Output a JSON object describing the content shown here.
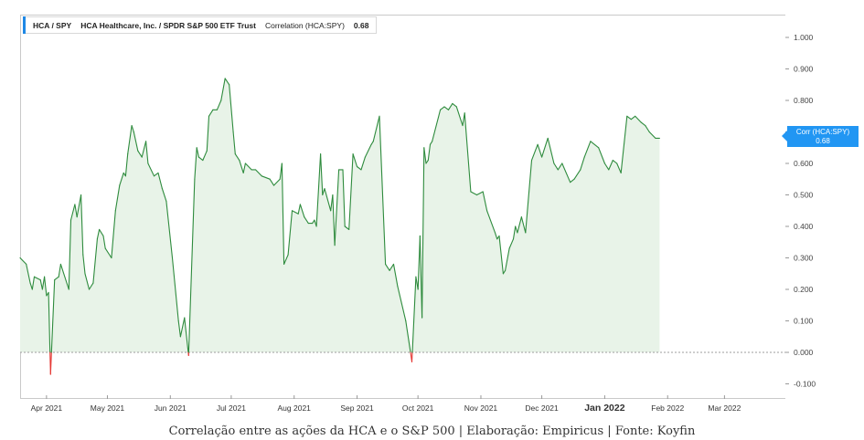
{
  "legend": {
    "ticker": "HCA / SPY",
    "description": "HCA Healthcare, Inc. / SPDR S&P 500 ETF Trust",
    "label": "Correlation (HCA:SPY)",
    "value": "0.68"
  },
  "badge": {
    "label": "Corr (HCA:SPY)",
    "value": "0.68"
  },
  "caption": "Correlação entre as ações da HCA e o S&P 500 | Elaboração: Empiricus | Fonte: Koyfin",
  "colors": {
    "line_positive": "#2e8b3d",
    "line_negative": "#e53935",
    "area_fill": "#e8f3e8",
    "accent": "#2196f3",
    "zero_line": "#9e9e9e"
  },
  "chart_data": {
    "type": "area",
    "series": [
      {
        "name": "Corr (HCA:SPY)"
      }
    ],
    "ylim": [
      -0.15,
      1.03
    ],
    "yticks": [
      1.0,
      0.9,
      0.8,
      0.7,
      0.6,
      0.5,
      0.4,
      0.3,
      0.2,
      0.1,
      0.0,
      -0.1
    ],
    "ytick_labels": [
      "1.000",
      "0.900",
      "0.800",
      "0.700",
      "0.600",
      "0.500",
      "0.400",
      "0.300",
      "0.200",
      "0.100",
      "0.000",
      "-0.100"
    ],
    "xlim": [
      "2021-03-19",
      "2022-03-31"
    ],
    "xticks": [
      {
        "date": "2021-04-01",
        "label": "Apr 2021"
      },
      {
        "date": "2021-05-01",
        "label": "May 2021"
      },
      {
        "date": "2021-06-01",
        "label": "Jun 2021"
      },
      {
        "date": "2021-07-01",
        "label": "Jul 2021"
      },
      {
        "date": "2021-08-01",
        "label": "Aug 2021"
      },
      {
        "date": "2021-09-01",
        "label": "Sep 2021"
      },
      {
        "date": "2021-10-01",
        "label": "Oct 2021"
      },
      {
        "date": "2021-11-01",
        "label": "Nov 2021"
      },
      {
        "date": "2021-12-01",
        "label": "Dec 2021"
      },
      {
        "date": "2022-01-01",
        "label": "Jan 2022",
        "bold": true
      },
      {
        "date": "2022-02-01",
        "label": "Feb 2022"
      },
      {
        "date": "2022-03-01",
        "label": "Mar 2022"
      }
    ],
    "points": [
      [
        "2021-03-19",
        0.3
      ],
      [
        "2021-03-22",
        0.28
      ],
      [
        "2021-03-24",
        0.22
      ],
      [
        "2021-03-25",
        0.2
      ],
      [
        "2021-03-26",
        0.24
      ],
      [
        "2021-03-29",
        0.23
      ],
      [
        "2021-03-30",
        0.2
      ],
      [
        "2021-03-31",
        0.24
      ],
      [
        "2021-04-01",
        0.18
      ],
      [
        "2021-04-02",
        0.19
      ],
      [
        "2021-04-03",
        -0.07
      ],
      [
        "2021-04-05",
        0.23
      ],
      [
        "2021-04-07",
        0.24
      ],
      [
        "2021-04-08",
        0.28
      ],
      [
        "2021-04-12",
        0.2
      ],
      [
        "2021-04-13",
        0.42
      ],
      [
        "2021-04-15",
        0.47
      ],
      [
        "2021-04-16",
        0.43
      ],
      [
        "2021-04-18",
        0.5
      ],
      [
        "2021-04-19",
        0.31
      ],
      [
        "2021-04-20",
        0.25
      ],
      [
        "2021-04-22",
        0.2
      ],
      [
        "2021-04-24",
        0.22
      ],
      [
        "2021-04-26",
        0.36
      ],
      [
        "2021-04-27",
        0.39
      ],
      [
        "2021-04-29",
        0.37
      ],
      [
        "2021-04-30",
        0.33
      ],
      [
        "2021-05-03",
        0.3
      ],
      [
        "2021-05-05",
        0.45
      ],
      [
        "2021-05-07",
        0.53
      ],
      [
        "2021-05-09",
        0.57
      ],
      [
        "2021-05-10",
        0.56
      ],
      [
        "2021-05-11",
        0.63
      ],
      [
        "2021-05-13",
        0.72
      ],
      [
        "2021-05-14",
        0.7
      ],
      [
        "2021-05-16",
        0.64
      ],
      [
        "2021-05-18",
        0.62
      ],
      [
        "2021-05-20",
        0.67
      ],
      [
        "2021-05-21",
        0.6
      ],
      [
        "2021-05-24",
        0.56
      ],
      [
        "2021-05-26",
        0.57
      ],
      [
        "2021-05-28",
        0.52
      ],
      [
        "2021-05-30",
        0.48
      ],
      [
        "2021-06-02",
        0.3
      ],
      [
        "2021-06-05",
        0.1
      ],
      [
        "2021-06-06",
        0.05
      ],
      [
        "2021-06-08",
        0.11
      ],
      [
        "2021-06-10",
        -0.01
      ],
      [
        "2021-06-13",
        0.55
      ],
      [
        "2021-06-14",
        0.65
      ],
      [
        "2021-06-15",
        0.62
      ],
      [
        "2021-06-17",
        0.61
      ],
      [
        "2021-06-19",
        0.64
      ],
      [
        "2021-06-20",
        0.75
      ],
      [
        "2021-06-22",
        0.77
      ],
      [
        "2021-06-24",
        0.77
      ],
      [
        "2021-06-26",
        0.8
      ],
      [
        "2021-06-28",
        0.87
      ],
      [
        "2021-06-30",
        0.85
      ],
      [
        "2021-07-02",
        0.7
      ],
      [
        "2021-07-03",
        0.63
      ],
      [
        "2021-07-05",
        0.61
      ],
      [
        "2021-07-07",
        0.57
      ],
      [
        "2021-07-08",
        0.6
      ],
      [
        "2021-07-11",
        0.58
      ],
      [
        "2021-07-13",
        0.58
      ],
      [
        "2021-07-16",
        0.56
      ],
      [
        "2021-07-20",
        0.55
      ],
      [
        "2021-07-22",
        0.53
      ],
      [
        "2021-07-25",
        0.55
      ],
      [
        "2021-07-26",
        0.6
      ],
      [
        "2021-07-27",
        0.28
      ],
      [
        "2021-07-29",
        0.31
      ],
      [
        "2021-07-31",
        0.45
      ],
      [
        "2021-08-03",
        0.44
      ],
      [
        "2021-08-04",
        0.47
      ],
      [
        "2021-08-06",
        0.43
      ],
      [
        "2021-08-08",
        0.41
      ],
      [
        "2021-08-10",
        0.41
      ],
      [
        "2021-08-11",
        0.42
      ],
      [
        "2021-08-12",
        0.4
      ],
      [
        "2021-08-14",
        0.63
      ],
      [
        "2021-08-15",
        0.5
      ],
      [
        "2021-08-16",
        0.52
      ],
      [
        "2021-08-19",
        0.45
      ],
      [
        "2021-08-20",
        0.5
      ],
      [
        "2021-08-21",
        0.34
      ],
      [
        "2021-08-23",
        0.58
      ],
      [
        "2021-08-25",
        0.58
      ],
      [
        "2021-08-26",
        0.4
      ],
      [
        "2021-08-28",
        0.39
      ],
      [
        "2021-08-30",
        0.63
      ],
      [
        "2021-09-01",
        0.59
      ],
      [
        "2021-09-03",
        0.58
      ],
      [
        "2021-09-05",
        0.62
      ],
      [
        "2021-09-08",
        0.66
      ],
      [
        "2021-09-09",
        0.67
      ],
      [
        "2021-09-12",
        0.75
      ],
      [
        "2021-09-15",
        0.28
      ],
      [
        "2021-09-17",
        0.26
      ],
      [
        "2021-09-19",
        0.28
      ],
      [
        "2021-09-21",
        0.21
      ],
      [
        "2021-09-25",
        0.1
      ],
      [
        "2021-09-28",
        -0.03
      ],
      [
        "2021-09-30",
        0.24
      ],
      [
        "2021-10-01",
        0.2
      ],
      [
        "2021-10-02",
        0.37
      ],
      [
        "2021-10-03",
        0.11
      ],
      [
        "2021-10-04",
        0.65
      ],
      [
        "2021-10-05",
        0.6
      ],
      [
        "2021-10-06",
        0.61
      ],
      [
        "2021-10-07",
        0.66
      ],
      [
        "2021-10-08",
        0.67
      ],
      [
        "2021-10-12",
        0.77
      ],
      [
        "2021-10-14",
        0.78
      ],
      [
        "2021-10-16",
        0.77
      ],
      [
        "2021-10-18",
        0.79
      ],
      [
        "2021-10-20",
        0.78
      ],
      [
        "2021-10-23",
        0.72
      ],
      [
        "2021-10-24",
        0.76
      ],
      [
        "2021-10-27",
        0.51
      ],
      [
        "2021-10-30",
        0.5
      ],
      [
        "2021-11-02",
        0.51
      ],
      [
        "2021-11-04",
        0.45
      ],
      [
        "2021-11-08",
        0.38
      ],
      [
        "2021-11-09",
        0.36
      ],
      [
        "2021-11-10",
        0.37
      ],
      [
        "2021-11-12",
        0.25
      ],
      [
        "2021-11-13",
        0.26
      ],
      [
        "2021-11-15",
        0.33
      ],
      [
        "2021-11-17",
        0.36
      ],
      [
        "2021-11-18",
        0.4
      ],
      [
        "2021-11-19",
        0.38
      ],
      [
        "2021-11-21",
        0.43
      ],
      [
        "2021-11-23",
        0.38
      ],
      [
        "2021-11-26",
        0.61
      ],
      [
        "2021-11-29",
        0.66
      ],
      [
        "2021-12-01",
        0.62
      ],
      [
        "2021-12-04",
        0.68
      ],
      [
        "2021-12-07",
        0.6
      ],
      [
        "2021-12-09",
        0.58
      ],
      [
        "2021-12-11",
        0.6
      ],
      [
        "2021-12-15",
        0.54
      ],
      [
        "2021-12-17",
        0.55
      ],
      [
        "2021-12-20",
        0.58
      ],
      [
        "2021-12-22",
        0.62
      ],
      [
        "2021-12-25",
        0.67
      ],
      [
        "2021-12-29",
        0.65
      ],
      [
        "2022-01-01",
        0.6
      ],
      [
        "2022-01-03",
        0.58
      ],
      [
        "2022-01-05",
        0.61
      ],
      [
        "2022-01-07",
        0.6
      ],
      [
        "2022-01-09",
        0.57
      ],
      [
        "2022-01-12",
        0.75
      ],
      [
        "2022-01-14",
        0.74
      ],
      [
        "2022-01-16",
        0.75
      ],
      [
        "2022-01-19",
        0.73
      ],
      [
        "2022-01-21",
        0.72
      ],
      [
        "2022-01-23",
        0.7
      ],
      [
        "2022-01-26",
        0.68
      ],
      [
        "2022-01-28",
        0.68
      ]
    ]
  }
}
